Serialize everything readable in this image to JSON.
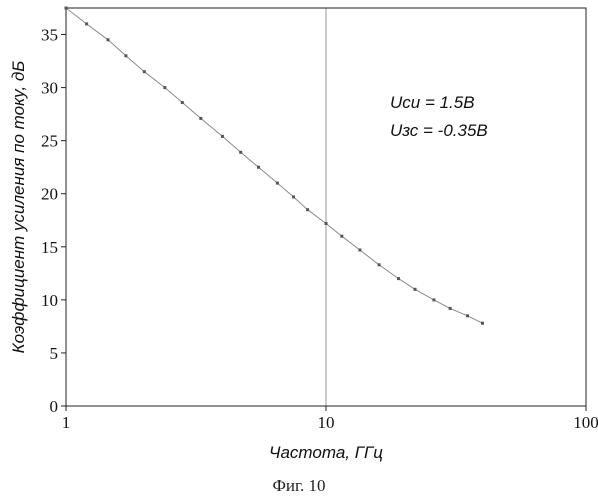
{
  "figure_caption": "Фиг. 10",
  "chart_data": {
    "type": "scatter",
    "xscale": "log",
    "xlabel": "Частота, ГГц",
    "ylabel": "Коэффициент усиления по току, дБ",
    "xlim": [
      1,
      100
    ],
    "ylim": [
      0,
      37.5
    ],
    "xticks": [
      1,
      10,
      100
    ],
    "xtick_labels": [
      "1",
      "10",
      "100"
    ],
    "yticks": [
      0,
      5,
      10,
      15,
      20,
      25,
      30,
      35
    ],
    "ytick_labels": [
      "0",
      "5",
      "10",
      "15",
      "20",
      "25",
      "30",
      "35"
    ],
    "grid": "vertical",
    "annotations": [
      "Uси = 1.5В",
      "Uзс = -0.35В"
    ],
    "line_color": "#8a8a8a",
    "series": [
      {
        "x": [
          1.0,
          1.2,
          1.45,
          1.7,
          2.0,
          2.4,
          2.8,
          3.3,
          4.0,
          4.7,
          5.5,
          6.5,
          7.5,
          8.5,
          10,
          11.5,
          13.5,
          16,
          19,
          22,
          26,
          30,
          35,
          40
        ],
        "y": [
          37.5,
          36.0,
          34.5,
          33.0,
          31.5,
          30.0,
          28.6,
          27.1,
          25.4,
          23.9,
          22.5,
          21.0,
          19.7,
          18.5,
          17.2,
          16.0,
          14.7,
          13.3,
          12.0,
          11.0,
          10.0,
          9.2,
          8.5,
          7.8
        ]
      }
    ]
  }
}
